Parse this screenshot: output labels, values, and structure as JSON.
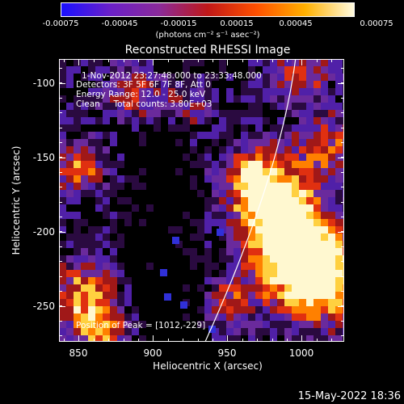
{
  "colorbar": {
    "tick_labels": [
      "-0.00075",
      "-0.00045",
      "-0.00015",
      "0.00015",
      "0.00045",
      "0.00075"
    ],
    "units": "(photons cm⁻² s⁻¹ asec⁻²)",
    "colors": [
      "#1a10ff",
      "#6a20c8",
      "#8a2a9a",
      "#c01818",
      "#ff5000",
      "#ffb000",
      "#fffbe0"
    ]
  },
  "image": {
    "title": "Reconstructed RHESSI Image",
    "info_lines": [
      "1-Nov-2012 23:27:48.000 to 23:33:48.000",
      "Detectors: 3F 5F 6F 7F 8F, Att 0",
      "Energy Range: 12.0 - 25.0 keV",
      "Clean     Total counts: 3.80E+03"
    ],
    "peak_text": "Position of Peak = [1012,-229]",
    "xlabel": "Heliocentric X (arcsec)",
    "ylabel": "Heliocentric Y (arcsec)",
    "xticks": [
      "850",
      "900",
      "950",
      "1000"
    ],
    "yticks": [
      "-100",
      "-150",
      "-200",
      "-250"
    ],
    "x_range": [
      838,
      1030
    ],
    "y_range": [
      -81,
      -271
    ],
    "limb_color": "#ffffff"
  },
  "footer": {
    "timestamp": "15-May-2022 18:36"
  }
}
